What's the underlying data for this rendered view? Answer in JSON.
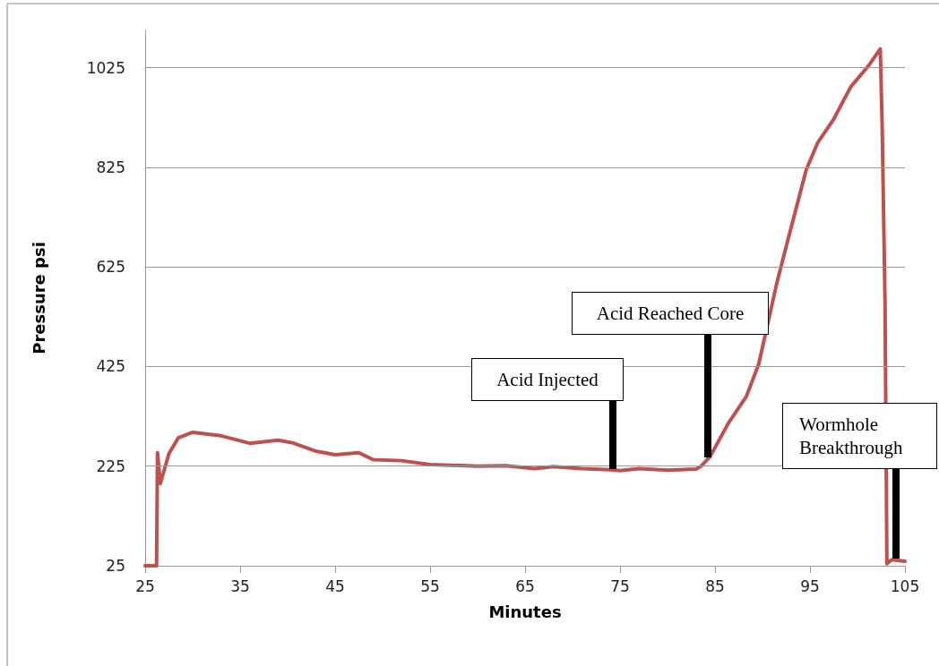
{
  "chart_data": {
    "type": "line",
    "xlabel": "Minutes",
    "ylabel": "Pressure psi",
    "series": [
      {
        "color": "#c0504d",
        "x": [
          25,
          26.2,
          26.3,
          26.6,
          27.5,
          28.5,
          30,
          33,
          36,
          39,
          40.5,
          43,
          45,
          47.5,
          49,
          52,
          55,
          57,
          60,
          63,
          66,
          68,
          71,
          74,
          75,
          77,
          80,
          83,
          83.6,
          84.5,
          86.4,
          88.3,
          89.6,
          91.5,
          92.7,
          94.6,
          95.8,
          97.5,
          99.3,
          101.2,
          102.4,
          102.6,
          102.9,
          103.1,
          103.6,
          105
        ],
        "values": [
          25,
          25,
          252,
          190,
          250,
          282,
          293,
          286,
          271,
          277,
          272,
          255,
          248,
          252,
          238,
          236,
          228,
          227,
          225,
          226,
          220,
          224,
          220,
          218,
          216,
          220,
          217,
          219,
          226,
          245,
          311,
          365,
          430,
          592,
          681,
          820,
          874,
          922,
          987,
          1030,
          1063,
          910,
          556,
          29,
          37,
          34
        ]
      }
    ],
    "xlim": [
      25,
      105
    ],
    "xticks": [
      25,
      35,
      45,
      55,
      65,
      75,
      85,
      95,
      105
    ],
    "ylim": [
      25,
      1100
    ],
    "yticks": [
      25,
      225,
      425,
      625,
      825,
      1025
    ],
    "grid": "y",
    "marker": "none",
    "line_style": "solid",
    "annotations": [
      "Acid Injected",
      "Acid Reached Core",
      "Wormhole\nBreakthrough"
    ]
  }
}
